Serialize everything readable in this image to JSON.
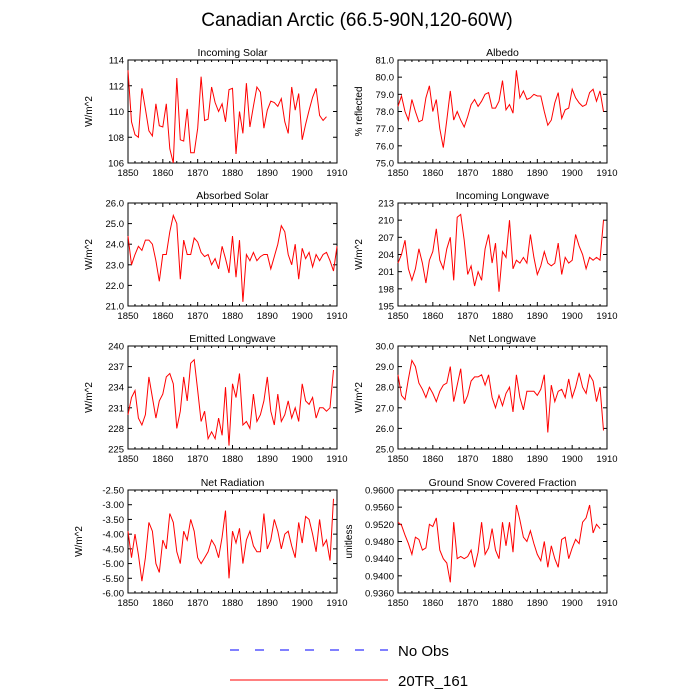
{
  "title": "Canadian Arctic (66.5-90N,120-60W)",
  "colors": {
    "model": "#ff0000",
    "obs": "#0000ff",
    "axis": "#000000"
  },
  "legend": {
    "obs_label": "No Obs",
    "model_label": "20TR_161"
  },
  "chart_data": [
    {
      "type": "line",
      "title": "Incoming Solar",
      "ylabel": "W/m^2",
      "xlim": [
        1850,
        1910
      ],
      "x_ticks": [
        1850,
        1860,
        1870,
        1880,
        1890,
        1900,
        1910
      ],
      "ylim": [
        106,
        114
      ],
      "y_ticks": [
        "106",
        "108",
        "110",
        "112",
        "114"
      ],
      "x_start": 1850,
      "series": [
        {
          "name": "20TR_161",
          "values": [
            113.2,
            109.2,
            108.2,
            108.0,
            111.8,
            110.2,
            108.5,
            108.1,
            110.6,
            108.9,
            108.8,
            110.6,
            107.1,
            106.0,
            112.6,
            107.8,
            107.7,
            110.2,
            106.8,
            106.8,
            108.7,
            112.7,
            109.3,
            109.4,
            111.9,
            110.7,
            110.0,
            110.6,
            109.2,
            111.7,
            111.8,
            106.7,
            110.0,
            108.3,
            112.2,
            108.8,
            110.4,
            111.9,
            111.5,
            108.7,
            110.1,
            110.8,
            110.7,
            110.4,
            111.0,
            109.2,
            108.3,
            111.9,
            110.1,
            111.4,
            107.8,
            109.0,
            110.1,
            111.1,
            111.8,
            109.7,
            109.3,
            109.6
          ]
        }
      ]
    },
    {
      "type": "line",
      "title": "Albedo",
      "ylabel": "% reflected",
      "xlim": [
        1850,
        1910
      ],
      "x_ticks": [
        1850,
        1860,
        1870,
        1880,
        1890,
        1900,
        1910
      ],
      "ylim": [
        75.0,
        81.0
      ],
      "y_ticks": [
        "75.0",
        "76.0",
        "77.0",
        "78.0",
        "79.0",
        "80.0",
        "81.0"
      ],
      "x_start": 1850,
      "series": [
        {
          "name": "20TR_161",
          "values": [
            78.3,
            78.9,
            78.0,
            77.5,
            78.7,
            78.0,
            77.4,
            77.5,
            78.8,
            79.5,
            78.0,
            78.7,
            77.0,
            75.9,
            77.5,
            79.2,
            77.5,
            78.0,
            77.5,
            77.1,
            77.7,
            78.4,
            78.7,
            78.3,
            78.6,
            79.0,
            79.1,
            78.2,
            78.2,
            78.6,
            79.8,
            78.1,
            78.4,
            77.9,
            80.4,
            78.8,
            79.2,
            78.7,
            78.8,
            79.0,
            78.9,
            78.9,
            78.0,
            77.2,
            77.5,
            78.5,
            79.1,
            77.6,
            78.1,
            78.2,
            79.3,
            78.8,
            78.5,
            78.3,
            78.4,
            79.1,
            79.3,
            78.6,
            79.2,
            78.0
          ]
        }
      ]
    },
    {
      "type": "line",
      "title": "Absorbed Solar",
      "ylabel": "W/m^2",
      "xlim": [
        1850,
        1910
      ],
      "x_ticks": [
        1850,
        1860,
        1870,
        1880,
        1890,
        1900,
        1910
      ],
      "ylim": [
        21.0,
        26.0
      ],
      "y_ticks": [
        "21.0",
        "22.0",
        "23.0",
        "24.0",
        "25.0",
        "26.0"
      ],
      "x_start": 1850,
      "series": [
        {
          "name": "20TR_161",
          "values": [
            24.4,
            23.0,
            23.5,
            23.9,
            23.7,
            24.2,
            24.2,
            24.0,
            23.2,
            22.2,
            23.5,
            23.5,
            24.6,
            25.4,
            25.0,
            22.3,
            24.2,
            23.5,
            23.5,
            24.3,
            24.1,
            23.6,
            23.4,
            23.5,
            23.0,
            23.3,
            22.8,
            23.9,
            23.3,
            22.6,
            24.4,
            22.4,
            24.2,
            21.2,
            23.5,
            23.2,
            23.6,
            23.2,
            23.4,
            23.5,
            23.5,
            22.8,
            23.4,
            24.0,
            24.9,
            24.6,
            23.5,
            23.0,
            24.0,
            22.3,
            23.8,
            23.3,
            23.6,
            22.9,
            23.5,
            23.2,
            23.5,
            23.6,
            23.2,
            22.7,
            23.9
          ]
        }
      ]
    },
    {
      "type": "line",
      "title": "Incoming Longwave",
      "ylabel": "W/m^2",
      "xlim": [
        1850,
        1910
      ],
      "x_ticks": [
        1850,
        1860,
        1870,
        1880,
        1890,
        1900,
        1910
      ],
      "ylim": [
        195,
        213
      ],
      "y_ticks": [
        "195",
        "198",
        "201",
        "204",
        "207",
        "210",
        "213"
      ],
      "x_start": 1850,
      "series": [
        {
          "name": "20TR_161",
          "values": [
            202.5,
            204.0,
            206.5,
            201.5,
            199.5,
            201.5,
            205.0,
            202.5,
            199.0,
            203.0,
            204.5,
            208.5,
            203.0,
            201.5,
            205.0,
            207.0,
            199.5,
            210.5,
            211.0,
            206.5,
            200.5,
            202.0,
            198.5,
            201.0,
            199.5,
            205.0,
            207.5,
            202.5,
            206.0,
            197.5,
            204.5,
            203.5,
            210.0,
            201.5,
            203.0,
            202.5,
            203.5,
            202.5,
            207.5,
            203.5,
            200.5,
            202.0,
            204.5,
            202.5,
            202.0,
            202.5,
            206.0,
            200.5,
            203.5,
            202.5,
            203.0,
            207.5,
            205.5,
            204.0,
            201.5,
            203.5,
            203.0,
            203.5,
            203.0,
            210.0
          ]
        }
      ]
    },
    {
      "type": "line",
      "title": "Emitted Longwave",
      "ylabel": "W/m^2",
      "xlim": [
        1850,
        1910
      ],
      "x_ticks": [
        1850,
        1860,
        1870,
        1880,
        1890,
        1900,
        1910
      ],
      "ylim": [
        225,
        240
      ],
      "y_ticks": [
        "225",
        "228",
        "231",
        "234",
        "237",
        "240"
      ],
      "x_start": 1850,
      "series": [
        {
          "name": "20TR_161",
          "values": [
            230.0,
            232.5,
            233.5,
            229.5,
            228.5,
            230.0,
            235.5,
            232.5,
            229.5,
            232.0,
            233.0,
            235.5,
            236.0,
            234.5,
            228.0,
            230.5,
            235.5,
            232.0,
            237.5,
            238.0,
            233.5,
            229.0,
            230.5,
            226.5,
            227.5,
            226.5,
            229.5,
            227.0,
            234.0,
            225.5,
            234.5,
            232.5,
            236.0,
            228.5,
            229.0,
            228.0,
            233.0,
            229.0,
            230.0,
            232.0,
            235.5,
            230.5,
            228.5,
            233.0,
            229.0,
            230.0,
            232.0,
            229.5,
            231.0,
            229.0,
            234.5,
            232.0,
            231.5,
            232.5,
            229.5,
            231.0,
            231.0,
            230.5,
            231.0,
            236.5
          ]
        }
      ]
    },
    {
      "type": "line",
      "title": "Net Longwave",
      "ylabel": "W/m^2",
      "xlim": [
        1850,
        1910
      ],
      "x_ticks": [
        1850,
        1860,
        1870,
        1880,
        1890,
        1900,
        1910
      ],
      "ylim": [
        25.0,
        30.0
      ],
      "y_ticks": [
        "25.0",
        "26.0",
        "27.0",
        "28.0",
        "29.0",
        "30.0"
      ],
      "x_start": 1850,
      "series": [
        {
          "name": "20TR_161",
          "values": [
            28.6,
            27.6,
            27.4,
            28.4,
            29.3,
            29.0,
            28.2,
            27.9,
            27.5,
            28.0,
            27.7,
            27.3,
            27.8,
            28.1,
            28.2,
            29.0,
            27.3,
            28.1,
            28.9,
            27.2,
            27.6,
            28.3,
            28.5,
            28.5,
            28.6,
            28.1,
            28.6,
            27.5,
            27.0,
            27.6,
            27.1,
            27.7,
            28.0,
            26.8,
            28.6,
            27.5,
            26.9,
            27.8,
            27.8,
            27.8,
            27.6,
            27.9,
            28.6,
            25.8,
            28.1,
            27.3,
            27.8,
            27.9,
            27.5,
            28.4,
            27.5,
            28.0,
            28.7,
            28.0,
            27.7,
            28.6,
            28.3,
            27.3,
            28.0,
            25.9
          ]
        }
      ]
    },
    {
      "type": "line",
      "title": "Net Radiation",
      "ylabel": "W/m^2",
      "xlim": [
        1850,
        1910
      ],
      "x_ticks": [
        1850,
        1860,
        1870,
        1880,
        1890,
        1900,
        1910
      ],
      "ylim": [
        -6.0,
        -2.5
      ],
      "y_ticks": [
        "-2.50",
        "-3.00",
        "-3.50",
        "-4.00",
        "-4.50",
        "-5.00",
        "-5.50",
        "-6.00"
      ],
      "x_start": 1850,
      "series": [
        {
          "name": "20TR_161",
          "values": [
            -3.9,
            -4.8,
            -4.0,
            -4.7,
            -5.6,
            -4.8,
            -3.6,
            -3.9,
            -5.0,
            -5.3,
            -4.2,
            -4.5,
            -3.3,
            -3.6,
            -4.6,
            -5.0,
            -3.9,
            -4.2,
            -3.5,
            -3.9,
            -4.8,
            -5.0,
            -4.8,
            -4.6,
            -4.2,
            -4.4,
            -4.8,
            -4.1,
            -3.2,
            -5.5,
            -3.9,
            -4.3,
            -3.8,
            -5.0,
            -4.2,
            -3.9,
            -4.4,
            -4.6,
            -4.6,
            -3.3,
            -4.5,
            -4.2,
            -3.5,
            -3.9,
            -4.5,
            -4.0,
            -3.9,
            -4.4,
            -4.8,
            -3.6,
            -4.3,
            -3.4,
            -3.5,
            -4.0,
            -4.6,
            -3.5,
            -4.4,
            -4.2,
            -4.9,
            -2.8
          ]
        }
      ]
    },
    {
      "type": "line",
      "title": "Ground Snow Covered Fraction",
      "ylabel": "unitless",
      "xlim": [
        1850,
        1910
      ],
      "x_ticks": [
        1850,
        1860,
        1870,
        1880,
        1890,
        1900,
        1910
      ],
      "ylim": [
        0.936,
        0.96
      ],
      "y_ticks": [
        "0.9360",
        "0.9400",
        "0.9440",
        "0.9480",
        "0.9520",
        "0.9560",
        "0.9600"
      ],
      "x_start": 1850,
      "series": [
        {
          "name": "20TR_161",
          "values": [
            0.9525,
            0.9518,
            0.9495,
            0.9475,
            0.945,
            0.949,
            0.9485,
            0.946,
            0.9465,
            0.952,
            0.9515,
            0.9535,
            0.946,
            0.944,
            0.943,
            0.9385,
            0.9525,
            0.944,
            0.9445,
            0.944,
            0.9445,
            0.946,
            0.942,
            0.9455,
            0.9525,
            0.945,
            0.9465,
            0.951,
            0.946,
            0.944,
            0.9525,
            0.947,
            0.9525,
            0.9455,
            0.9565,
            0.953,
            0.949,
            0.948,
            0.9505,
            0.9475,
            0.945,
            0.9435,
            0.948,
            0.942,
            0.947,
            0.944,
            0.942,
            0.9485,
            0.949,
            0.944,
            0.9465,
            0.9485,
            0.9475,
            0.9525,
            0.9535,
            0.9565,
            0.95,
            0.952,
            0.951
          ]
        }
      ]
    }
  ]
}
